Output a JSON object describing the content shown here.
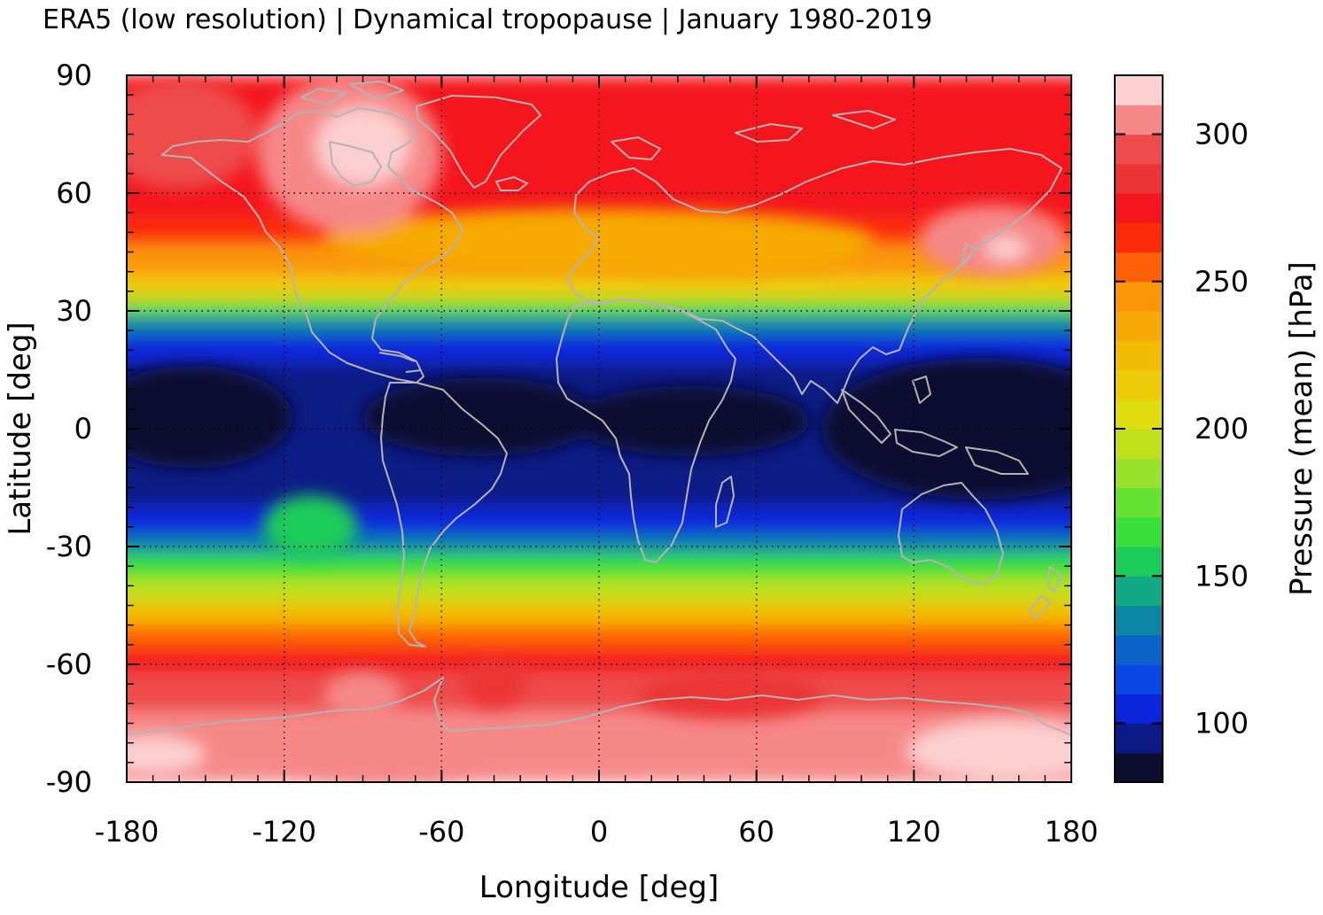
{
  "chart_data": {
    "type": "heatmap",
    "title": "ERA5 (low resolution) | Dynamical tropopause | January 1980-2019",
    "xlabel": "Longitude [deg]",
    "ylabel": "Latitude [deg]",
    "xlim": [
      -180,
      180
    ],
    "ylim": [
      -90,
      90
    ],
    "x_ticks": [
      -180,
      -120,
      -60,
      0,
      60,
      120,
      180
    ],
    "y_ticks": [
      90,
      60,
      30,
      0,
      -30,
      -60,
      -90
    ],
    "x_tick_labels": [
      "-180",
      "-120",
      "-60",
      "0",
      "60",
      "120",
      "180"
    ],
    "y_tick_labels": [
      "90",
      "60",
      "30",
      "0",
      "-30",
      "-60",
      "-90"
    ],
    "grid": true,
    "colorbar": {
      "label": "Pressure (mean) [hPa]",
      "range": [
        80,
        320
      ],
      "ticks": [
        100,
        150,
        200,
        250,
        300
      ],
      "tick_labels": [
        "100",
        "150",
        "200",
        "250",
        "300"
      ],
      "levels": [
        {
          "from": 80,
          "to": 90,
          "color": "#0d0d30"
        },
        {
          "from": 90,
          "to": 100,
          "color": "#0b1a86"
        },
        {
          "from": 100,
          "to": 110,
          "color": "#0a25dc"
        },
        {
          "from": 110,
          "to": 120,
          "color": "#0b46e6"
        },
        {
          "from": 120,
          "to": 130,
          "color": "#0b64c8"
        },
        {
          "from": 130,
          "to": 140,
          "color": "#0d86a6"
        },
        {
          "from": 140,
          "to": 150,
          "color": "#12aa84"
        },
        {
          "from": 150,
          "to": 160,
          "color": "#1ccc58"
        },
        {
          "from": 160,
          "to": 170,
          "color": "#3ae03a"
        },
        {
          "from": 170,
          "to": 180,
          "color": "#66e232"
        },
        {
          "from": 180,
          "to": 190,
          "color": "#98e22c"
        },
        {
          "from": 190,
          "to": 200,
          "color": "#bfe01a"
        },
        {
          "from": 200,
          "to": 210,
          "color": "#dfdc10"
        },
        {
          "from": 210,
          "to": 220,
          "color": "#eccc08"
        },
        {
          "from": 220,
          "to": 230,
          "color": "#f2bc04"
        },
        {
          "from": 230,
          "to": 240,
          "color": "#f7aa06"
        },
        {
          "from": 240,
          "to": 250,
          "color": "#fb9608"
        },
        {
          "from": 250,
          "to": 260,
          "color": "#fd6006"
        },
        {
          "from": 260,
          "to": 270,
          "color": "#fc2c08"
        },
        {
          "from": 270,
          "to": 280,
          "color": "#f4161c"
        },
        {
          "from": 280,
          "to": 290,
          "color": "#ec3436"
        },
        {
          "from": 290,
          "to": 300,
          "color": "#ee4c4c"
        },
        {
          "from": 300,
          "to": 310,
          "color": "#f68888"
        },
        {
          "from": 310,
          "to": 320,
          "color": "#fccfd0"
        }
      ]
    },
    "features": [
      {
        "kind": "zonal-band",
        "lat": [
          -90,
          -72
        ],
        "value": 305
      },
      {
        "kind": "zonal-band",
        "lat": [
          -72,
          -62
        ],
        "value": 295
      },
      {
        "kind": "zonal-band",
        "lat": [
          -62,
          -56
        ],
        "value": 275
      },
      {
        "kind": "zonal-band",
        "lat": [
          -56,
          -50
        ],
        "value": 255
      },
      {
        "kind": "zonal-band",
        "lat": [
          -50,
          -44
        ],
        "value": 225
      },
      {
        "kind": "zonal-band",
        "lat": [
          -44,
          -38
        ],
        "value": 195
      },
      {
        "kind": "zonal-band",
        "lat": [
          -38,
          -32
        ],
        "value": 165
      },
      {
        "kind": "zonal-band",
        "lat": [
          -32,
          -27
        ],
        "value": 135
      },
      {
        "kind": "zonal-band",
        "lat": [
          -27,
          -20
        ],
        "value": 105
      },
      {
        "kind": "zonal-band",
        "lat": [
          -20,
          17
        ],
        "value": 95
      },
      {
        "kind": "zonal-band",
        "lat": [
          17,
          24
        ],
        "value": 105
      },
      {
        "kind": "zonal-band",
        "lat": [
          24,
          29
        ],
        "value": 135
      },
      {
        "kind": "zonal-band",
        "lat": [
          29,
          33
        ],
        "value": 175
      },
      {
        "kind": "zonal-band",
        "lat": [
          33,
          39
        ],
        "value": 215
      },
      {
        "kind": "zonal-band",
        "lat": [
          39,
          47
        ],
        "value": 245
      },
      {
        "kind": "zonal-band",
        "lat": [
          47,
          54
        ],
        "value": 265
      },
      {
        "kind": "zonal-band",
        "lat": [
          54,
          90
        ],
        "value": 275
      },
      {
        "kind": "blob",
        "lon": 0,
        "lat": 48,
        "rlon": 105,
        "rlat": 8,
        "value": 235
      },
      {
        "kind": "blob",
        "lon": 40,
        "lat": 45,
        "rlon": 60,
        "rlat": 6,
        "value": 230
      },
      {
        "kind": "blob",
        "lon": -95,
        "lat": 70,
        "rlon": 35,
        "rlat": 20,
        "value": 300
      },
      {
        "kind": "blob",
        "lon": -90,
        "lat": 72,
        "rlon": 18,
        "rlat": 10,
        "value": 315
      },
      {
        "kind": "blob",
        "lon": 150,
        "lat": 48,
        "rlon": 28,
        "rlat": 9,
        "value": 300
      },
      {
        "kind": "blob",
        "lon": 155,
        "lat": 46,
        "rlon": 8,
        "rlat": 3,
        "value": 315
      },
      {
        "kind": "blob",
        "lon": -160,
        "lat": 75,
        "rlon": 30,
        "rlat": 14,
        "value": 290
      },
      {
        "kind": "blob",
        "lon": -155,
        "lat": 3,
        "rlon": 38,
        "rlat": 13,
        "value": 85
      },
      {
        "kind": "blob",
        "lon": -45,
        "lat": 3,
        "rlon": 45,
        "rlat": 10,
        "value": 85
      },
      {
        "kind": "blob",
        "lon": 35,
        "lat": 2,
        "rlon": 45,
        "rlat": 9,
        "value": 85
      },
      {
        "kind": "blob",
        "lon": 145,
        "lat": 0,
        "rlon": 60,
        "rlat": 18,
        "value": 85
      },
      {
        "kind": "blob",
        "lon": -110,
        "lat": -25,
        "rlon": 18,
        "rlat": 8,
        "value": 150
      },
      {
        "kind": "blob",
        "lon": -80,
        "lat": -82,
        "rlon": 40,
        "rlat": 8,
        "value": 300
      },
      {
        "kind": "blob",
        "lon": 155,
        "lat": -82,
        "rlon": 38,
        "rlat": 8,
        "value": 315
      },
      {
        "kind": "blob",
        "lon": -170,
        "lat": -83,
        "rlon": 20,
        "rlat": 5,
        "value": 315
      },
      {
        "kind": "blob",
        "lon": -90,
        "lat": -68,
        "rlon": 15,
        "rlat": 6,
        "value": 305
      },
      {
        "kind": "blob",
        "lon": 50,
        "lat": -68,
        "rlon": 35,
        "rlat": 6,
        "value": 285
      },
      {
        "kind": "blob",
        "lon": -40,
        "lat": -65,
        "rlon": 12,
        "rlat": 6,
        "value": 285
      }
    ],
    "overlay": "coastlines"
  }
}
